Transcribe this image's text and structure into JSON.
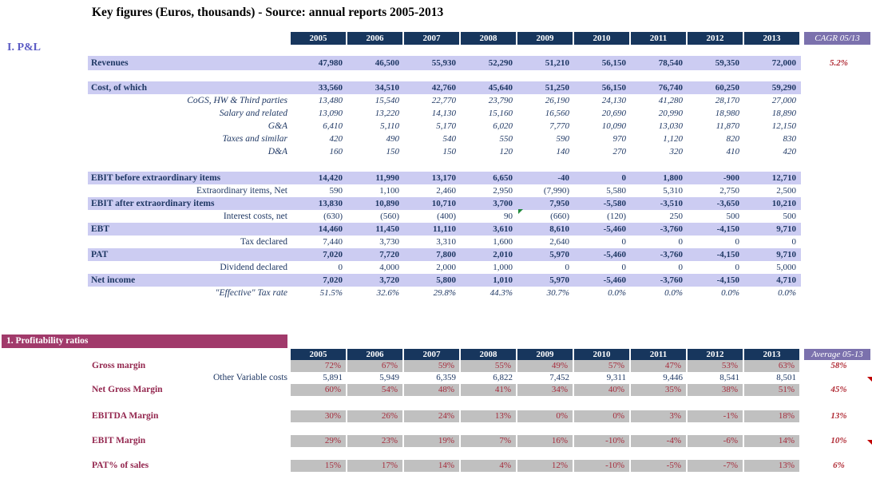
{
  "title": "Key figures (Euros, thousands) - Source: annual reports 2005-2013",
  "colors": {
    "header_navy": "#17365D",
    "header_purple": "#7B71AD",
    "band_lavender": "#CCCCF2",
    "text_navy": "#1F3864",
    "accent_red": "#B02B35",
    "banner_maroon": "#A13A6B",
    "ratio_label_maroon": "#93264E",
    "ratio_cell_gray": "#C0C0C0",
    "section_label_blue": "#5B5BC4",
    "comment_flag_green": "#1F8A3B",
    "comment_flag_red": "#C00000"
  },
  "icons": {
    "green_marker": "comment-flag-green-icon",
    "red_marker": "comment-flag-red-icon"
  },
  "pnl": {
    "section_label": "I. P&L",
    "years": [
      "2005",
      "2006",
      "2007",
      "2008",
      "2009",
      "2010",
      "2011",
      "2012",
      "2013"
    ],
    "summary_header": "CAGR 05/13",
    "rows": [
      {
        "type": "gap",
        "h": 14
      },
      {
        "type": "band",
        "h": 18,
        "label": "Revenues",
        "values": [
          "47,980",
          "46,500",
          "55,930",
          "52,290",
          "51,210",
          "56,150",
          "78,540",
          "59,350",
          "72,000"
        ],
        "summary": "5.2%"
      },
      {
        "type": "gap",
        "h": 14
      },
      {
        "type": "band",
        "label": "Cost, of which",
        "values": [
          "33,560",
          "34,510",
          "42,760",
          "45,640",
          "51,250",
          "56,150",
          "76,740",
          "60,250",
          "59,290"
        ]
      },
      {
        "type": "italic",
        "label": "CoGS, HW & Third parties",
        "values": [
          "13,480",
          "15,540",
          "22,770",
          "23,790",
          "26,190",
          "24,130",
          "41,280",
          "28,170",
          "27,000"
        ]
      },
      {
        "type": "italic",
        "label": "Salary and related",
        "values": [
          "13,090",
          "13,220",
          "14,130",
          "15,160",
          "16,560",
          "20,690",
          "20,990",
          "18,980",
          "18,890"
        ]
      },
      {
        "type": "italic",
        "label": "G&A",
        "values": [
          "6,410",
          "5,110",
          "5,170",
          "6,020",
          "7,770",
          "10,090",
          "13,030",
          "11,870",
          "12,150"
        ]
      },
      {
        "type": "italic",
        "label": "Taxes and similar",
        "values": [
          "420",
          "490",
          "540",
          "550",
          "590",
          "970",
          "1,120",
          "820",
          "830"
        ]
      },
      {
        "type": "italic",
        "label": "D&A",
        "values": [
          "160",
          "150",
          "150",
          "120",
          "140",
          "270",
          "320",
          "410",
          "420"
        ]
      },
      {
        "type": "gap",
        "h": 17
      },
      {
        "type": "band",
        "label": "EBIT before extraordinary items",
        "values": [
          "14,420",
          "11,990",
          "13,170",
          "6,650",
          "-40",
          "0",
          "1,800",
          "-900",
          "12,710"
        ]
      },
      {
        "type": "plain",
        "label": "Extraordinary items, Net",
        "values": [
          "590",
          "1,100",
          "2,460",
          "2,950",
          "(7,990)",
          "5,580",
          "5,310",
          "2,750",
          "2,500"
        ]
      },
      {
        "type": "band",
        "label": "EBIT after extraordinary items",
        "values": [
          "13,830",
          "10,890",
          "10,710",
          "3,700",
          "7,950",
          "-5,580",
          "-3,510",
          "-3,650",
          "10,210"
        ]
      },
      {
        "type": "plain",
        "label": "Interest costs, net",
        "values": [
          "(630)",
          "(560)",
          "(400)",
          "90",
          "(660)",
          "(120)",
          "250",
          "500",
          "500"
        ]
      },
      {
        "type": "band",
        "label": "EBT",
        "values": [
          "14,460",
          "11,450",
          "11,110",
          "3,610",
          "8,610",
          "-5,460",
          "-3,760",
          "-4,150",
          "9,710"
        ]
      },
      {
        "type": "plain",
        "label": "Tax declared",
        "values": [
          "7,440",
          "3,730",
          "3,310",
          "1,600",
          "2,640",
          "0",
          "0",
          "0",
          "0"
        ]
      },
      {
        "type": "band",
        "label": "PAT",
        "values": [
          "7,020",
          "7,720",
          "7,800",
          "2,010",
          "5,970",
          "-5,460",
          "-3,760",
          "-4,150",
          "9,710"
        ]
      },
      {
        "type": "plain",
        "label": "Dividend declared",
        "values": [
          "0",
          "4,000",
          "2,000",
          "1,000",
          "0",
          "0",
          "0",
          "0",
          "5,000"
        ]
      },
      {
        "type": "band",
        "label": "Net income",
        "values": [
          "7,020",
          "3,720",
          "5,800",
          "1,010",
          "5,970",
          "-5,460",
          "-3,760",
          "-4,150",
          "4,710"
        ]
      },
      {
        "type": "italic",
        "label": "\"Effective\" Tax rate",
        "values": [
          "51.5%",
          "32.6%",
          "29.8%",
          "44.3%",
          "30.7%",
          "0.0%",
          "0.0%",
          "0.0%",
          "0.0%"
        ]
      }
    ]
  },
  "ratios": {
    "banner": "1. Profitability ratios",
    "years": [
      "2005",
      "2006",
      "2007",
      "2008",
      "2009",
      "2010",
      "2011",
      "2012",
      "2013"
    ],
    "summary_header": "Average 05-13",
    "rows": [
      {
        "type": "ratio",
        "label": "Gross margin",
        "values": [
          "72%",
          "67%",
          "59%",
          "55%",
          "49%",
          "57%",
          "47%",
          "53%",
          "63%"
        ],
        "summary": "58%"
      },
      {
        "type": "plainblue",
        "label": "Other Variable costs",
        "values": [
          "5,891",
          "5,949",
          "6,359",
          "6,822",
          "7,452",
          "9,311",
          "9,446",
          "8,541",
          "8,501"
        ],
        "summary": ""
      },
      {
        "type": "ratio",
        "label": "Net Gross Margin",
        "values": [
          "60%",
          "54%",
          "48%",
          "41%",
          "34%",
          "40%",
          "35%",
          "38%",
          "51%"
        ],
        "summary": "45%"
      },
      {
        "type": "gap",
        "h": 18
      },
      {
        "type": "ratio",
        "label": "EBITDA Margin",
        "values": [
          "30%",
          "26%",
          "24%",
          "13%",
          "0%",
          "0%",
          "3%",
          "-1%",
          "18%"
        ],
        "summary": "13%"
      },
      {
        "type": "gap",
        "h": 16
      },
      {
        "type": "ratio",
        "label": "EBIT Margin",
        "values": [
          "29%",
          "23%",
          "19%",
          "7%",
          "16%",
          "-10%",
          "-4%",
          "-6%",
          "14%"
        ],
        "summary": "10%"
      },
      {
        "type": "gap",
        "h": 16
      },
      {
        "type": "ratio",
        "label": "PAT% of sales",
        "values": [
          "15%",
          "17%",
          "14%",
          "4%",
          "12%",
          "-10%",
          "-5%",
          "-7%",
          "13%"
        ],
        "summary": "6%"
      }
    ]
  }
}
